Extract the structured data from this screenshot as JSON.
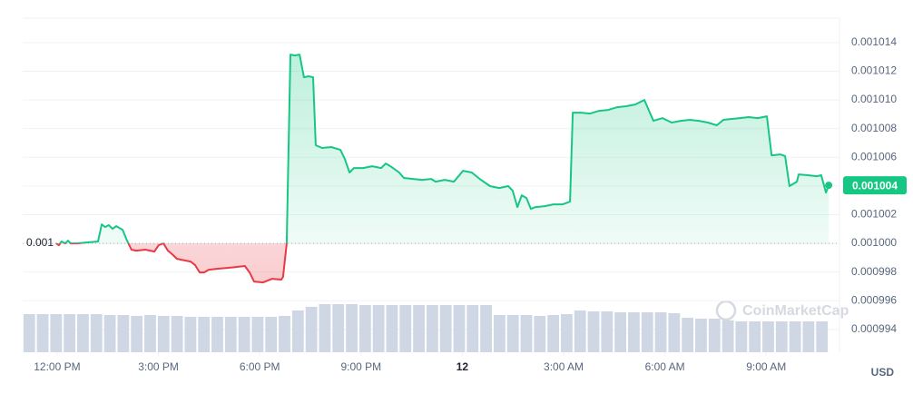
{
  "chart_data": {
    "type": "line",
    "baseline": 0.001,
    "x": [
      -0.03,
      0.05,
      0.13,
      0.24,
      0.32,
      0.4,
      0.59,
      0.86,
      1.21,
      1.32,
      1.42,
      1.53,
      1.64,
      1.75,
      1.94,
      2.07,
      2.2,
      2.34,
      2.61,
      2.88,
      3.01,
      3.15,
      3.28,
      3.41,
      3.55,
      3.68,
      3.95,
      4.09,
      4.22,
      4.35,
      4.49,
      4.76,
      5.03,
      5.3,
      5.56,
      5.7,
      5.83,
      6.1,
      6.37,
      6.64,
      6.69,
      6.8,
      6.91,
      7.04,
      7.18,
      7.31,
      7.45,
      7.58,
      7.66,
      7.85,
      8.12,
      8.39,
      8.52,
      8.66,
      8.79,
      9.06,
      9.33,
      9.6,
      9.73,
      9.87,
      10.13,
      10.27,
      10.54,
      10.81,
      11.08,
      11.21,
      11.48,
      11.75,
      12.02,
      12.28,
      12.55,
      12.82,
      13.09,
      13.36,
      13.49,
      13.63,
      13.76,
      13.9,
      14.03,
      14.17,
      14.44,
      14.7,
      14.97,
      15.19,
      15.27,
      15.51,
      15.78,
      16.05,
      16.32,
      16.59,
      16.85,
      17.12,
      17.39,
      17.53,
      17.66,
      17.93,
      18.2,
      18.47,
      18.74,
      19.01,
      19.27,
      19.54,
      19.73,
      19.95,
      20.22,
      20.48,
      20.75,
      21.02,
      21.16,
      21.42,
      21.56,
      21.69,
      21.91,
      21.96,
      22.23,
      22.5,
      22.63,
      22.77,
      22.85
    ],
    "series": [
      {
        "name": "Price",
        "color": "#16c784",
        "down_color": "#ea3943",
        "values": [
          0.001,
          0.00099987,
          0.00100013,
          0.001,
          0.00100019,
          0.001,
          0.001,
          0.00100006,
          0.00100013,
          0.00100133,
          0.00100114,
          0.00100127,
          0.00100101,
          0.0010012,
          0.00100095,
          0.00100019,
          0.00099956,
          0.00099949,
          0.00099956,
          0.00099943,
          0.00099987,
          0.001,
          0.00099949,
          0.00099924,
          0.00099892,
          0.00099886,
          0.00099873,
          0.00099848,
          0.00099797,
          0.00099797,
          0.00099816,
          0.00099823,
          0.00099829,
          0.00099835,
          0.00099842,
          0.00099797,
          0.00099734,
          0.00099728,
          0.00099753,
          0.00099747,
          0.00099766,
          0.001,
          0.00101316,
          0.0010131,
          0.00101316,
          0.00101158,
          0.00101165,
          0.00101158,
          0.00100684,
          0.00100665,
          0.00100671,
          0.00100652,
          0.00100589,
          0.00100494,
          0.00100525,
          0.00100525,
          0.00100538,
          0.00100525,
          0.00100557,
          0.00100538,
          0.00100494,
          0.00100456,
          0.00100449,
          0.00100443,
          0.00100449,
          0.0010043,
          0.00100443,
          0.0010043,
          0.00100506,
          0.00100494,
          0.00100443,
          0.00100399,
          0.00100386,
          0.00100399,
          0.00100367,
          0.00100253,
          0.00100335,
          0.00100316,
          0.00100241,
          0.00100253,
          0.00100259,
          0.00100272,
          0.00100272,
          0.00100291,
          0.00100911,
          0.00100911,
          0.00100905,
          0.00100924,
          0.0010093,
          0.00100949,
          0.00100956,
          0.00100968,
          0.00101,
          0.00100924,
          0.00100854,
          0.00100873,
          0.00100842,
          0.00100854,
          0.00100861,
          0.00100854,
          0.00100842,
          0.00100823,
          0.00100861,
          0.00100867,
          0.00100873,
          0.0010088,
          0.00100873,
          0.00100886,
          0.00100614,
          0.0010062,
          0.00100608,
          0.00100399,
          0.0010043,
          0.00100481,
          0.00100475,
          0.00100468,
          0.00100475,
          0.00100354,
          0.00100405
        ]
      }
    ],
    "last_label": "0.001004",
    "volume": {
      "color": "#cfd6e4",
      "values": [
        42,
        42,
        42,
        42,
        42,
        42,
        41,
        41,
        40,
        41,
        40,
        40,
        39,
        39,
        39,
        39,
        39,
        39,
        39,
        40,
        46,
        50,
        53,
        53,
        53,
        52,
        52,
        52,
        52,
        52,
        52,
        52,
        52,
        52,
        52,
        41,
        41,
        41,
        40,
        41,
        42,
        46,
        45,
        45,
        44,
        44,
        44,
        44,
        43,
        38,
        37,
        37,
        35,
        34,
        34,
        34,
        34,
        34,
        34,
        34
      ]
    },
    "xlim": [
      -1.02,
      23.17
    ],
    "xticks": [
      {
        "value": 0,
        "label": "12:00 PM"
      },
      {
        "value": 3,
        "label": "3:00 PM"
      },
      {
        "value": 6,
        "label": "6:00 PM"
      },
      {
        "value": 9,
        "label": "9:00 PM"
      },
      {
        "value": 12,
        "label": "12"
      },
      {
        "value": 15,
        "label": "3:00 AM"
      },
      {
        "value": 18,
        "label": "6:00 AM"
      },
      {
        "value": 21,
        "label": "9:00 AM"
      }
    ],
    "ylim": [
      0.00099241,
      0.0010157
    ],
    "yticks": [
      0.001014,
      0.001012,
      {
        "value": 0.00101,
        "label": "0.001010"
      },
      0.001008,
      0.001006,
      0.001004,
      0.001002,
      {
        "value": 0.001,
        "label": "0.001000"
      },
      0.000998,
      0.000996,
      0.000994
    ],
    "y_axis_unit": "USD",
    "watermark": "CoinMarketCap",
    "grid": true
  }
}
